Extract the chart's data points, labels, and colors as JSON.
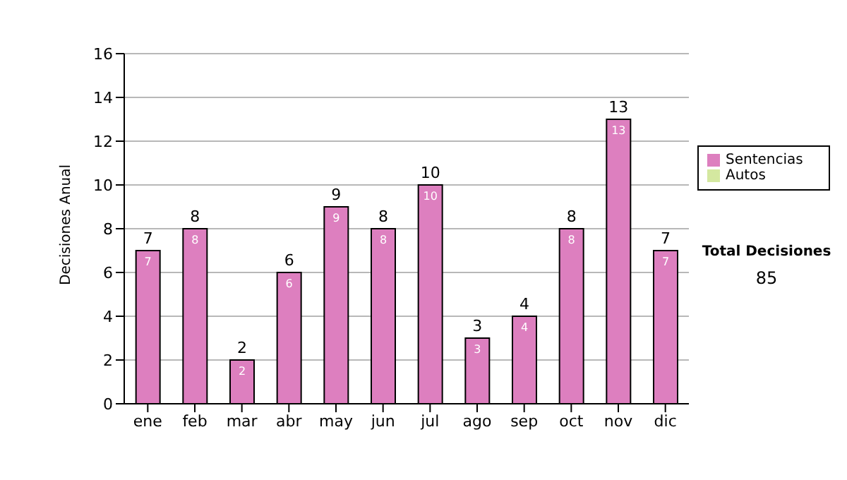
{
  "chart_data": {
    "type": "bar",
    "ylabel": "Decisiones Anual",
    "categories": [
      "ene",
      "feb",
      "mar",
      "abr",
      "may",
      "jun",
      "jul",
      "ago",
      "sep",
      "oct",
      "nov",
      "dic"
    ],
    "series": [
      {
        "name": "Sentencias",
        "color": "#dd7fbf",
        "values": [
          7,
          8,
          2,
          6,
          9,
          8,
          10,
          3,
          4,
          8,
          13,
          7
        ]
      },
      {
        "name": "Autos",
        "color": "#d4e8a0",
        "values": [
          null,
          null,
          null,
          null,
          null,
          null,
          null,
          null,
          null,
          null,
          null,
          null
        ]
      }
    ],
    "stacked": true,
    "totals": [
      "7",
      "8",
      "2",
      "6",
      "9",
      "8",
      "10",
      "3",
      "4",
      "8",
      "13",
      "7"
    ],
    "data_labels": true,
    "ylim": [
      0,
      16
    ],
    "yticks": [
      0,
      2,
      4,
      6,
      8,
      10,
      12,
      14,
      16
    ],
    "grid": "y",
    "legend": "right",
    "annotations": [
      "Total Decisiones",
      "85"
    ]
  }
}
